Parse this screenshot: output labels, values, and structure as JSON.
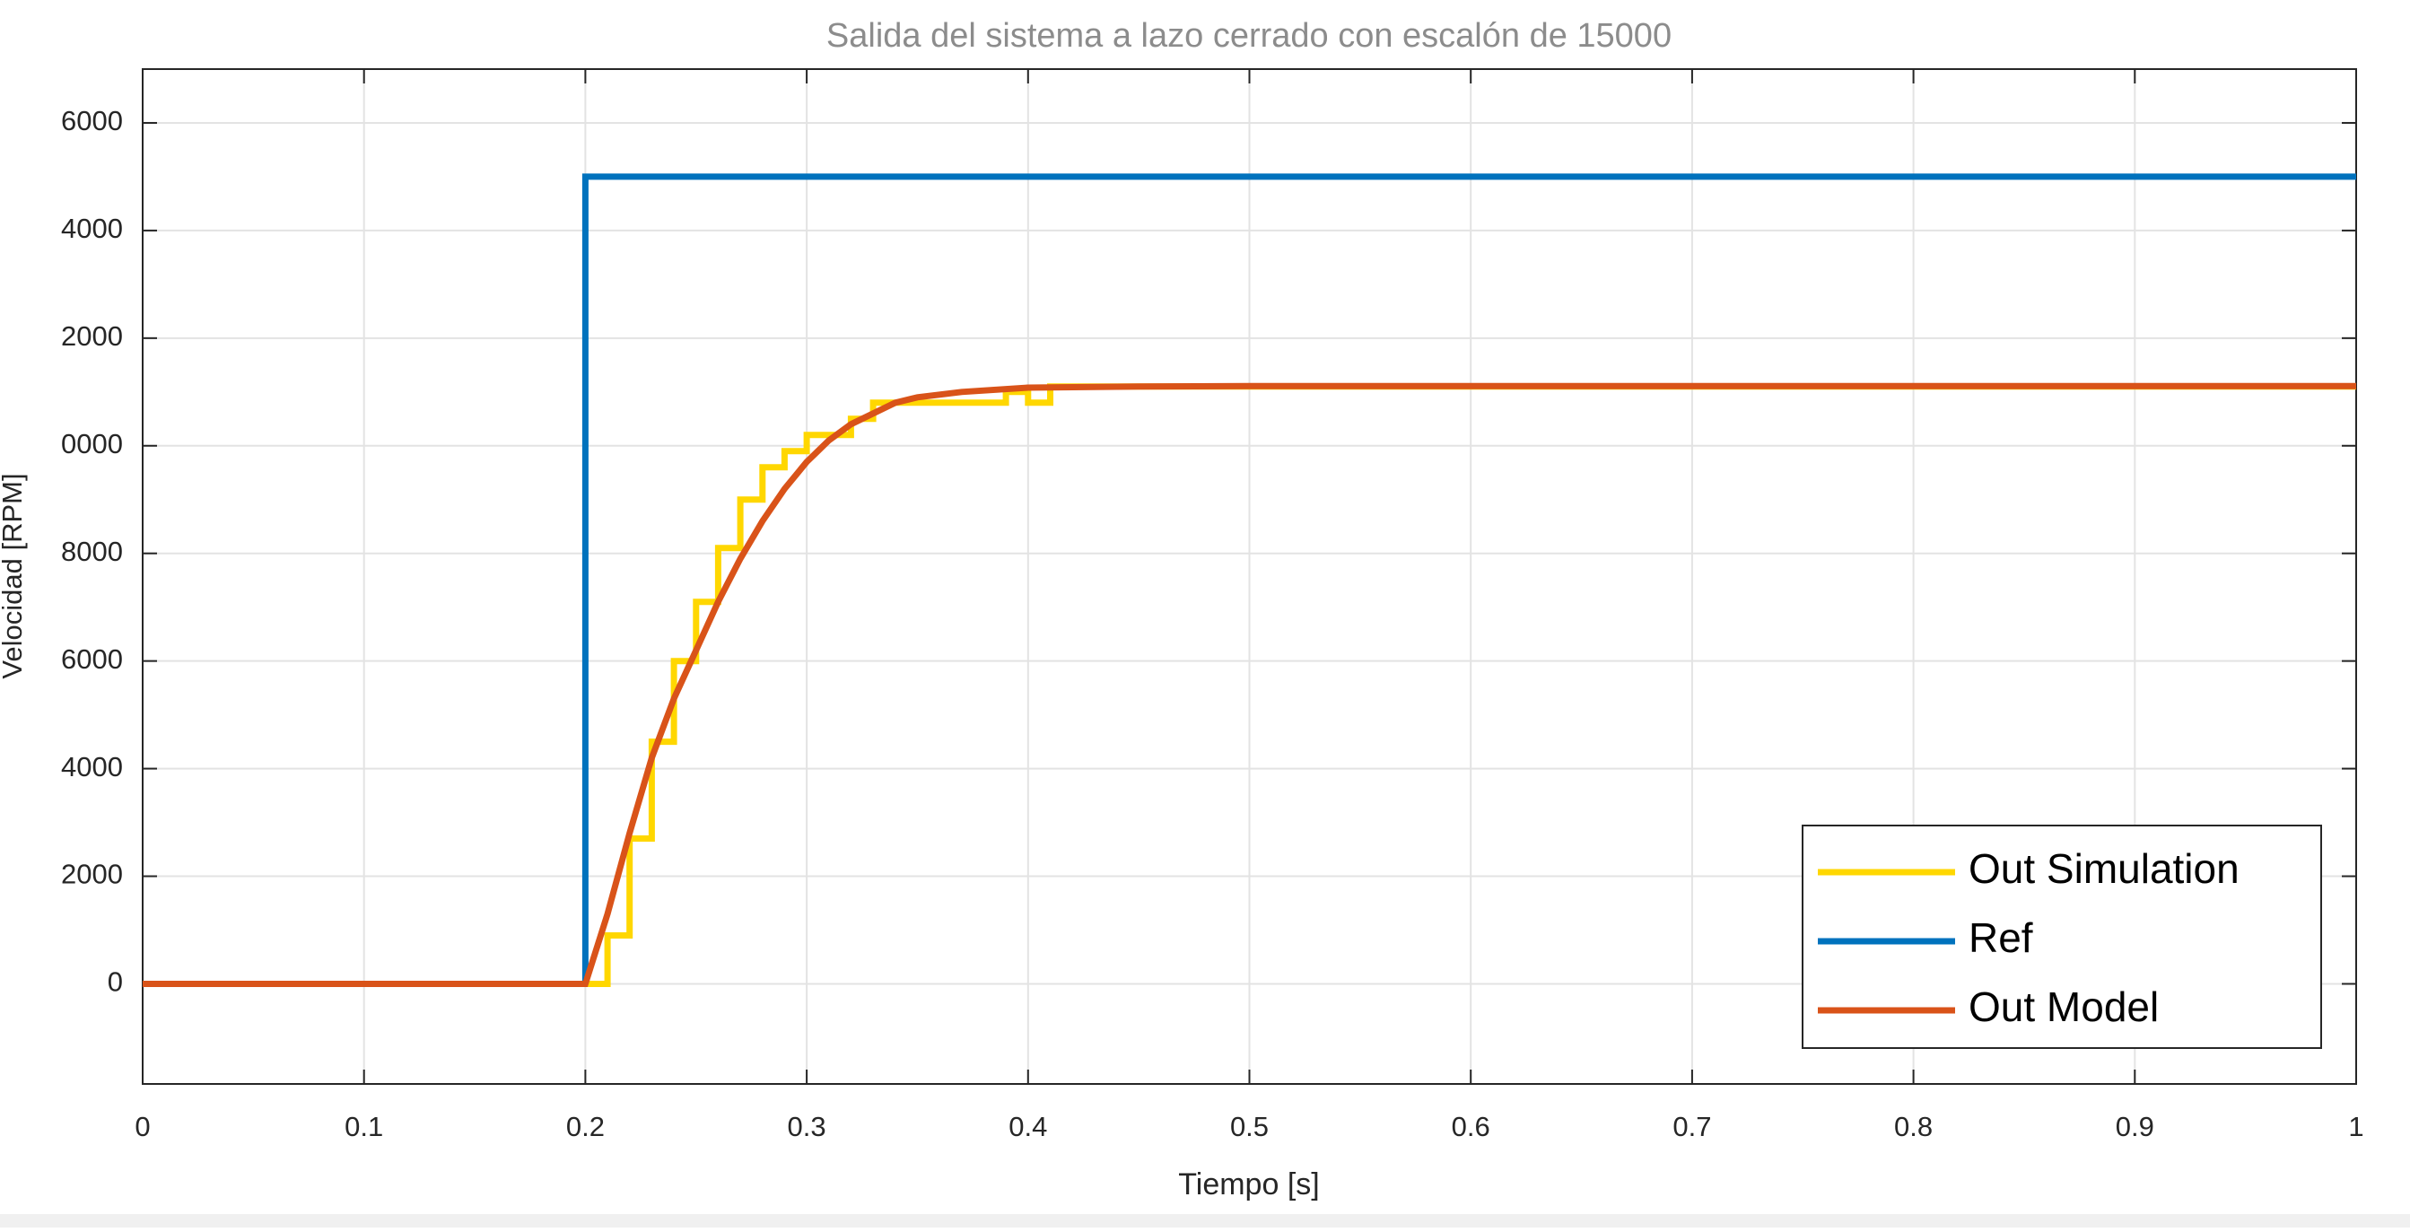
{
  "chart_data": {
    "type": "line",
    "title": "Salida del sistema a lazo cerrado con escalón de 15000",
    "x_label": "Tiempo [s]",
    "y_label": "Velocidad [RPM]",
    "xlim": [
      0,
      1
    ],
    "xticks": [
      0,
      0.1,
      0.2,
      0.3,
      0.4,
      0.5,
      0.6,
      0.7,
      0.8,
      0.9,
      1
    ],
    "ylim": [
      -1860,
      17000
    ],
    "yticks": [
      0,
      2000,
      4000,
      6000,
      8000,
      {
        "value": 10000,
        "label": "0000"
      },
      {
        "value": 12000,
        "label": "2000"
      },
      {
        "value": 14000,
        "label": "4000"
      },
      {
        "value": 16000,
        "label": "6000"
      }
    ],
    "grid": true,
    "legend": "lower-right",
    "series": [
      {
        "name": "Out Simulation",
        "color": "#ffd700",
        "x": [
          0,
          0.21,
          0.21,
          0.22,
          0.22,
          0.23,
          0.23,
          0.24,
          0.24,
          0.25,
          0.25,
          0.26,
          0.26,
          0.27,
          0.27,
          0.28,
          0.28,
          0.29,
          0.29,
          0.3,
          0.3,
          0.32,
          0.32,
          0.33,
          0.33,
          0.39,
          0.39,
          0.4,
          0.4,
          0.41,
          0.41,
          1
        ],
        "values": [
          0,
          0,
          900,
          900,
          2700,
          2700,
          4500,
          4500,
          6000,
          6000,
          7100,
          7100,
          8100,
          8100,
          9000,
          9000,
          9600,
          9600,
          9900,
          9900,
          10200,
          10200,
          10500,
          10500,
          10800,
          10800,
          11000,
          11000,
          10800,
          10800,
          11100,
          11100
        ]
      },
      {
        "name": "Ref",
        "color": "#0072bd",
        "x": [
          0,
          0.2,
          0.2,
          1
        ],
        "values": [
          0,
          0,
          15000,
          15000
        ]
      },
      {
        "name": "Out Model",
        "color": "#d95319",
        "x": [
          0,
          0.2,
          0.21,
          0.22,
          0.23,
          0.24,
          0.25,
          0.26,
          0.27,
          0.28,
          0.29,
          0.3,
          0.31,
          0.32,
          0.33,
          0.34,
          0.35,
          0.37,
          0.4,
          0.45,
          0.5,
          1
        ],
        "values": [
          0,
          0,
          1300,
          2800,
          4200,
          5300,
          6200,
          7100,
          7900,
          8600,
          9200,
          9700,
          10100,
          10400,
          10600,
          10800,
          10900,
          11000,
          11080,
          11100,
          11110,
          11110
        ]
      }
    ]
  }
}
